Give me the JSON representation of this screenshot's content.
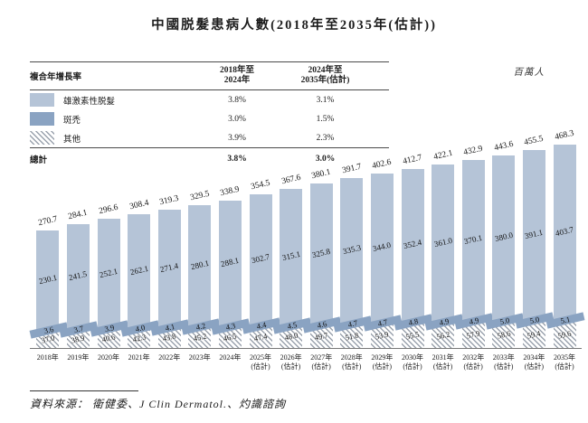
{
  "title": "中國脱髮患病人數(2018年至2035年(估計))",
  "unit_label": "百萬人",
  "cagr_table": {
    "header": {
      "label": "複合年增長率",
      "col1": "2018年至\n2024年",
      "col2": "2024年至\n2035年(估計)"
    },
    "rows": [
      {
        "label": "雄激素性脱髮",
        "swatch": "light",
        "cagr_2018_2024": "3.8%",
        "cagr_2024_2035": "3.1%"
      },
      {
        "label": "斑禿",
        "swatch": "dark",
        "cagr_2018_2024": "3.0%",
        "cagr_2024_2035": "1.5%"
      },
      {
        "label": "其他",
        "swatch": "hatch",
        "cagr_2018_2024": "3.9%",
        "cagr_2024_2035": "2.3%"
      }
    ],
    "total_row": {
      "label": "總計",
      "cagr_2018_2024": "3.8%",
      "cagr_2024_2035": "3.0%"
    }
  },
  "chart_data": {
    "type": "bar",
    "stacked": true,
    "title": "中國脱髮患病人數(2018年至2035年(估計))",
    "ylabel": "百萬人",
    "legend_position": "top-left",
    "grid": false,
    "categories": [
      "2018年",
      "2019年",
      "2020年",
      "2021年",
      "2022年",
      "2023年",
      "2024年",
      "2025年\n(估計)",
      "2026年\n(估計)",
      "2027年\n(估計)",
      "2028年\n(估計)",
      "2029年\n(估計)",
      "2030年\n(估計)",
      "2031年\n(估計)",
      "2032年\n(估計)",
      "2033年\n(估計)",
      "2034年\n(估計)",
      "2035年\n(估計)"
    ],
    "series": [
      {
        "name": "雄激素性脱髮",
        "values": [
          230.1,
          241.5,
          252.1,
          262.1,
          271.4,
          280.1,
          288.1,
          302.7,
          315.1,
          325.8,
          335.3,
          344.0,
          352.4,
          361.0,
          370.1,
          380.0,
          391.1,
          403.7
        ]
      },
      {
        "name": "斑禿",
        "values": [
          3.6,
          3.7,
          3.9,
          4.0,
          4.1,
          4.2,
          4.3,
          4.4,
          4.5,
          4.6,
          4.7,
          4.7,
          4.8,
          4.9,
          4.9,
          5.0,
          5.0,
          5.1
        ]
      },
      {
        "name": "其他",
        "values": [
          37.0,
          38.9,
          40.6,
          42.3,
          43.8,
          45.2,
          46.5,
          47.4,
          48.0,
          49.7,
          51.8,
          53.9,
          55.5,
          56.2,
          57.9,
          58.6,
          59.4,
          59.6
        ]
      }
    ],
    "totals": [
      270.7,
      284.1,
      296.6,
      308.4,
      319.3,
      329.5,
      338.9,
      354.5,
      367.6,
      380.1,
      391.7,
      402.6,
      412.7,
      422.1,
      432.9,
      443.6,
      455.5,
      468.3
    ]
  },
  "colors": {
    "light_blue": "#b5c4d7",
    "dark_blue": "#8aa3c2",
    "hatch_line": "#9aa2ad"
  },
  "source": "資料來源： 衛健委、J Clin Dermatol.、灼識諮詢"
}
